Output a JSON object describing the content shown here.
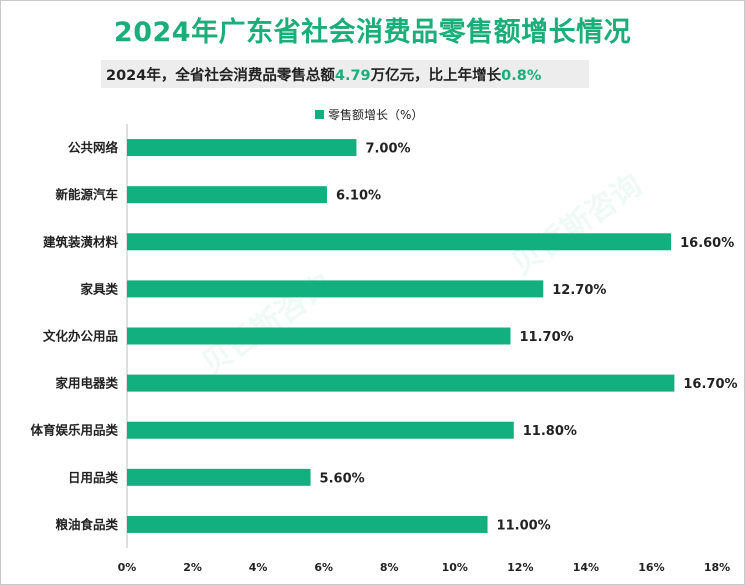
{
  "title": "2024年广东省社会消费品零售额增长情况",
  "subtitle": {
    "prefix": "2024年，全省社会消费品零售总额",
    "value": "4.79",
    "middle": "万亿元，比上年增长",
    "growth": "0.8%"
  },
  "colors": {
    "accent": "#1aae7a",
    "bar": "#12b07e"
  },
  "chart_data": {
    "type": "bar",
    "orientation": "horizontal",
    "legend_position": "top",
    "categories": [
      "公共网络",
      "新能源汽车",
      "建筑装潢材料",
      "家具类",
      "文化办公用品",
      "家用电器类",
      "体育娱乐用品类",
      "日用品类",
      "粮油食品类"
    ],
    "series": [
      {
        "name": "零售额增长（%）",
        "values": [
          7.0,
          6.1,
          16.6,
          12.7,
          11.7,
          16.7,
          11.8,
          5.6,
          11.0
        ]
      }
    ],
    "data_labels": [
      "7.00%",
      "6.10%",
      "16.60%",
      "12.70%",
      "11.70%",
      "16.70%",
      "11.80%",
      "5.60%",
      "11.00%"
    ],
    "xlim": [
      0,
      18
    ],
    "x_ticks": [
      0,
      2,
      4,
      6,
      8,
      10,
      12,
      14,
      16,
      18
    ],
    "x_tick_labels": [
      "0%",
      "2%",
      "4%",
      "6%",
      "8%",
      "10%",
      "12%",
      "14%",
      "16%",
      "18%"
    ],
    "grid": false
  }
}
